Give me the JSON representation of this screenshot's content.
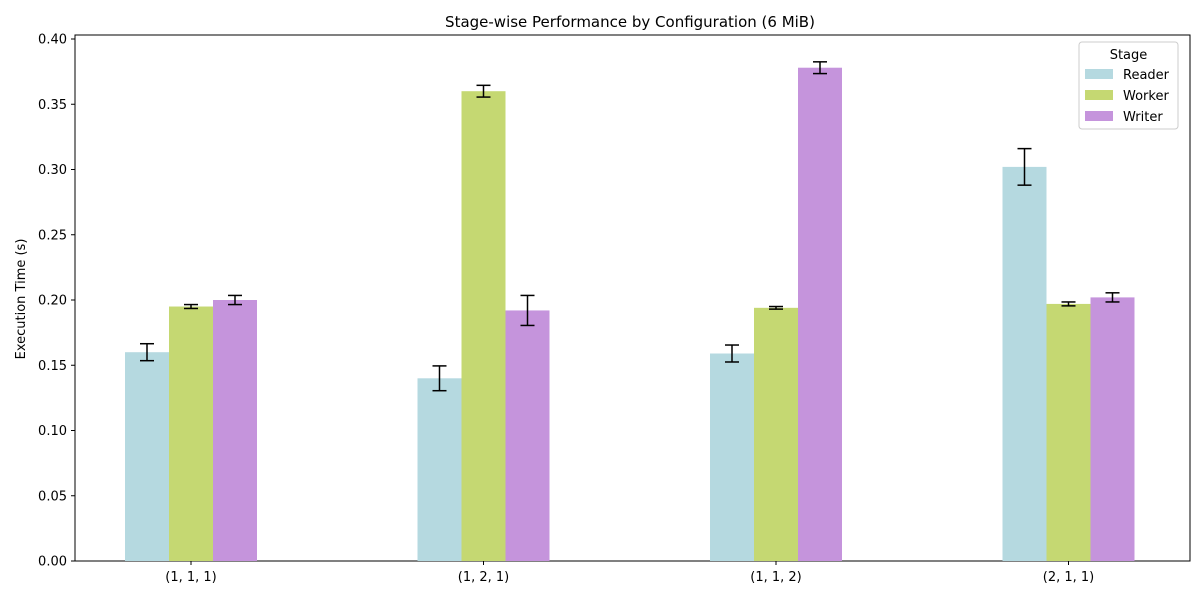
{
  "chart_data": {
    "type": "bar",
    "title": "Stage-wise Performance by Configuration (6 MiB)",
    "xlabel": "",
    "ylabel": "Execution Time (s)",
    "categories": [
      "(1, 1, 1)",
      "(1, 2, 1)",
      "(1, 1, 2)",
      "(2, 1, 1)"
    ],
    "ylim": [
      0,
      0.4
    ],
    "yticks": [
      "0.00",
      "0.05",
      "0.10",
      "0.15",
      "0.20",
      "0.25",
      "0.30",
      "0.35",
      "0.40"
    ],
    "grid": false,
    "legend": {
      "title": "Stage",
      "placement": "top-right"
    },
    "series": [
      {
        "name": "Reader",
        "color": "#b5d9e0",
        "values": [
          0.16,
          0.14,
          0.159,
          0.302
        ],
        "errors": [
          0.0065,
          0.0095,
          0.0065,
          0.014
        ]
      },
      {
        "name": "Worker",
        "color": "#c5d872",
        "values": [
          0.195,
          0.36,
          0.194,
          0.197
        ],
        "errors": [
          0.0015,
          0.0045,
          0.001,
          0.0015
        ]
      },
      {
        "name": "Writer",
        "color": "#c594dc",
        "values": [
          0.2,
          0.192,
          0.378,
          0.202
        ],
        "errors": [
          0.0035,
          0.0115,
          0.0045,
          0.0035
        ]
      }
    ]
  }
}
